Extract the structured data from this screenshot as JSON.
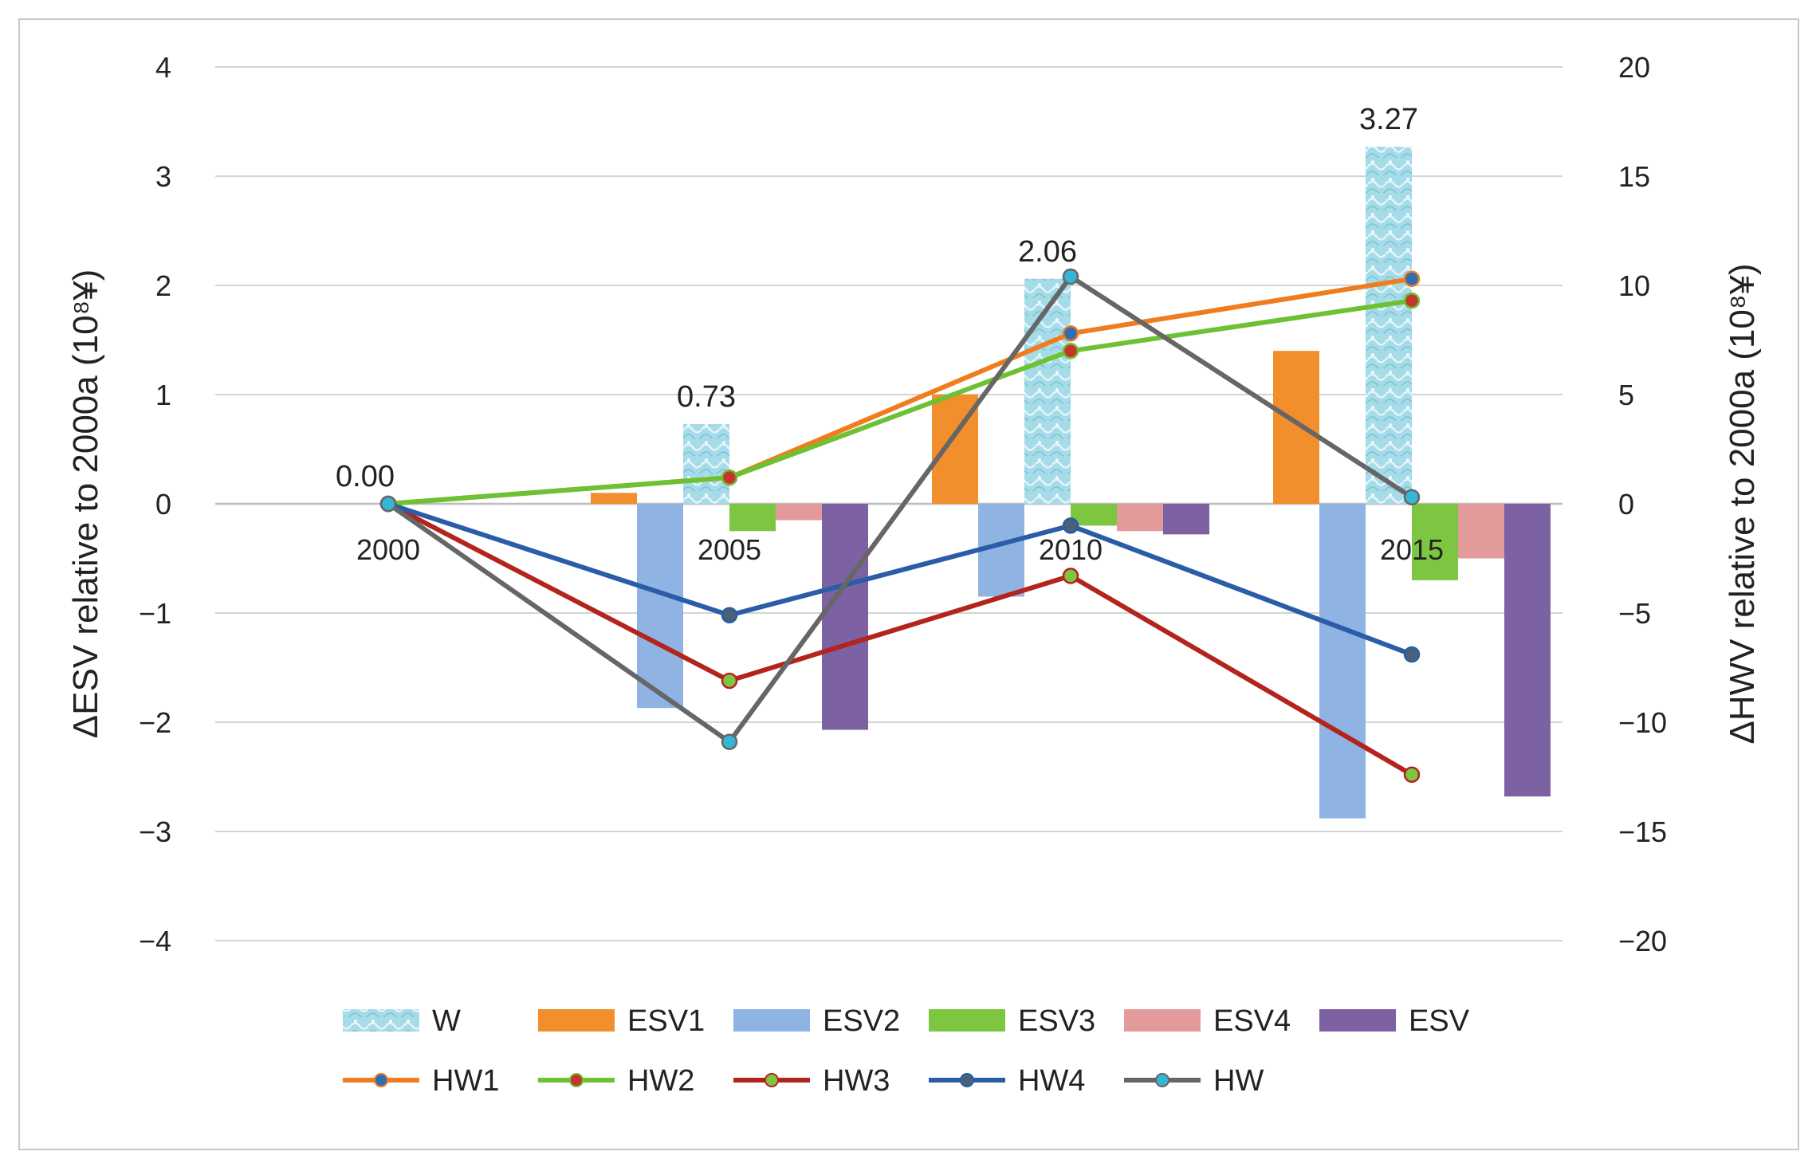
{
  "chart_data": {
    "type": "bar",
    "categories": [
      "2000",
      "2005",
      "2010",
      "2015"
    ],
    "ylabel_left": "ΔESV relative to 2000a (10⁸¥)",
    "ylabel_right": "ΔHWV relative to 2000a (10⁸¥)",
    "ylim_left": [
      -4,
      4
    ],
    "ylim_right": [
      -20,
      20
    ],
    "yticks_left": [
      "4",
      "3",
      "2",
      "1",
      "0",
      "−1",
      "−2",
      "−3",
      "−4"
    ],
    "yticks_right": [
      "20",
      "15",
      "10",
      "5",
      "0",
      "−5",
      "−10",
      "−15",
      "−20"
    ],
    "grid": true,
    "legend_position": "bottom",
    "bar_series": [
      {
        "name": "ESV1",
        "color": "#f28e2b",
        "values": [
          0,
          0.1,
          1.0,
          1.4
        ]
      },
      {
        "name": "ESV2",
        "color": "#8fb4e3",
        "values": [
          0,
          -1.87,
          -0.85,
          -2.88
        ]
      },
      {
        "name": "W",
        "color": "#a8dce8",
        "pattern": true,
        "values": [
          0.0,
          0.73,
          2.06,
          3.27
        ],
        "labels": [
          "0.00",
          "0.73",
          "2.06",
          "3.27"
        ]
      },
      {
        "name": "ESV3",
        "color": "#7dc641",
        "values": [
          0,
          -0.25,
          -0.2,
          -0.7
        ]
      },
      {
        "name": "ESV4",
        "color": "#e39a9a",
        "values": [
          0,
          -0.15,
          -0.25,
          -0.5
        ]
      },
      {
        "name": "ESV",
        "color": "#7d62a3",
        "values": [
          0,
          -2.07,
          -0.28,
          -2.68
        ]
      }
    ],
    "line_series": [
      {
        "name": "HW1",
        "color": "#f07c1e",
        "marker_color": "#2f6db5",
        "values": [
          0,
          1.2,
          7.8,
          10.3
        ]
      },
      {
        "name": "HW2",
        "color": "#6cc232",
        "marker_color": "#c7342d",
        "values": [
          0,
          1.2,
          7.0,
          9.3
        ]
      },
      {
        "name": "HW3",
        "color": "#b3241c",
        "marker_color": "#7dc641",
        "values": [
          0,
          -8.1,
          -3.3,
          -12.4
        ]
      },
      {
        "name": "HW4",
        "color": "#2a5ca8",
        "marker_color": "#4a6278",
        "values": [
          0,
          -5.1,
          -1.0,
          -6.9
        ]
      },
      {
        "name": "HW",
        "color": "#666666",
        "marker_color": "#36b6d6",
        "values": [
          0,
          -10.9,
          10.4,
          0.3
        ]
      }
    ],
    "legend_order": [
      "W",
      "ESV1",
      "ESV2",
      "ESV3",
      "ESV4",
      "ESV",
      "HW1",
      "HW2",
      "HW3",
      "HW4",
      "HW"
    ]
  }
}
